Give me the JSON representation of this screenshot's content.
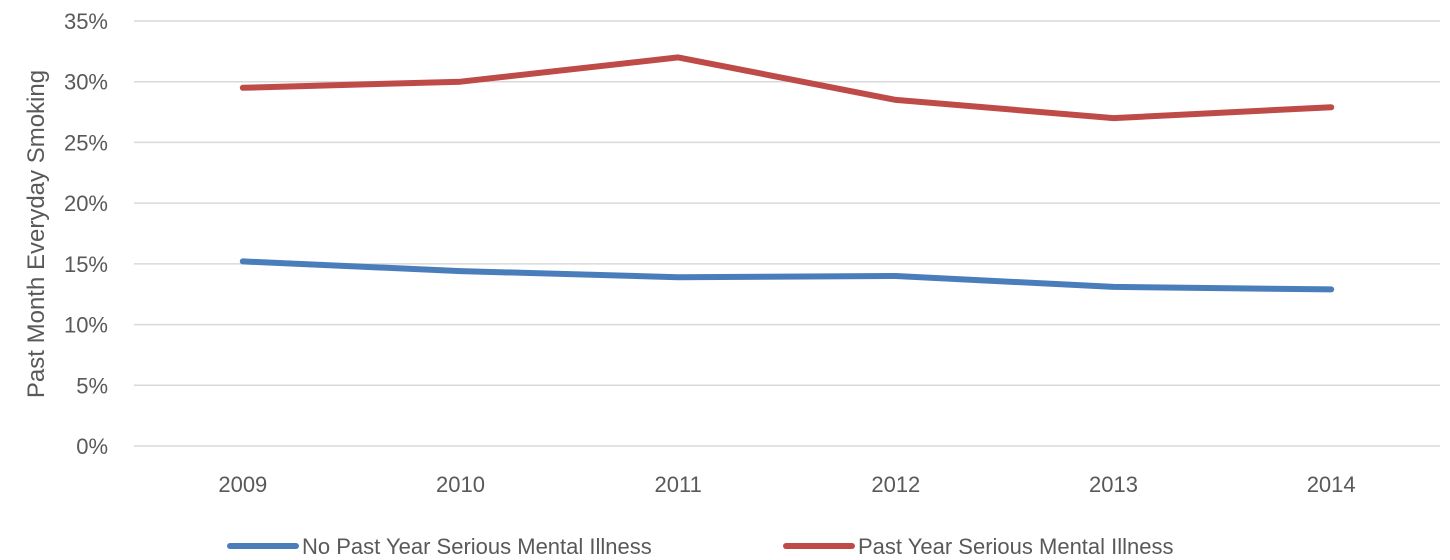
{
  "chart_data": {
    "type": "line",
    "ylabel": "Past Month Everyday Smoking",
    "xlabel": "",
    "categories": [
      "2009",
      "2010",
      "2011",
      "2012",
      "2013",
      "2014"
    ],
    "y_tick_labels": [
      "0%",
      "5%",
      "10%",
      "15%",
      "20%",
      "25%",
      "30%",
      "35%"
    ],
    "ylim": [
      0,
      35
    ],
    "y_unit": "%",
    "grid": true,
    "legend_position": "bottom",
    "series": [
      {
        "name": "No Past Year Serious Mental Illness",
        "color": "#4a7ebb",
        "values": [
          15.2,
          14.4,
          13.9,
          14.0,
          13.1,
          12.9
        ]
      },
      {
        "name": "Past Year Serious Mental Illness",
        "color": "#be4b48",
        "values": [
          29.5,
          30.0,
          32.0,
          28.5,
          27.0,
          27.9
        ]
      }
    ]
  }
}
